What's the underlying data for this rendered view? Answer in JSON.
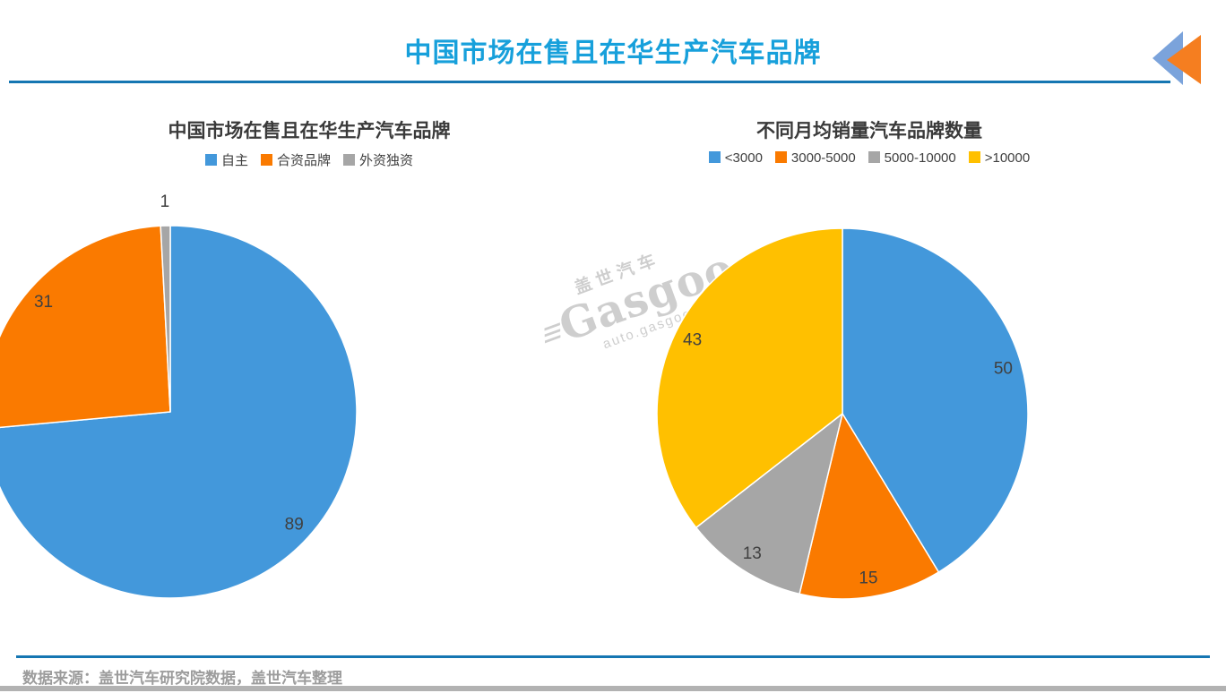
{
  "page": {
    "title": "中国市场在售且在华生产汽车品牌",
    "footer_source": "数据来源：盖世汽车研究院数据，盖世汽车整理",
    "watermark": {
      "cn": "盖世汽车",
      "bars": "≡",
      "brand": "Gasgoo",
      "url": "auto.gasgoo.com"
    },
    "colors": {
      "title": "#17A0DB",
      "rule": "#1576B2",
      "chart_title": "#3A3A3A",
      "data_label": "#404040",
      "footer_text": "#9C9C9C",
      "bottom_bar": "#B2B2B2",
      "logo_blue": "#7BA3DB",
      "logo_orange": "#F57E20"
    }
  },
  "chart_data": [
    {
      "type": "pie",
      "title": "中国市场在售且在华生产汽车品牌",
      "categories": [
        "自主",
        "合资品牌",
        "外资独资"
      ],
      "values": [
        89,
        31,
        1
      ],
      "colors": [
        "#4398DB",
        "#FA7A00",
        "#A6A6A6"
      ],
      "legend_position": "top",
      "start_angle_deg": 0,
      "direction": "clockwise",
      "data_labels": [
        "89",
        "31",
        "1"
      ]
    },
    {
      "type": "pie",
      "title": "不同月均销量汽车品牌数量",
      "categories": [
        "<3000",
        "3000-5000",
        "5000-10000",
        ">10000"
      ],
      "values": [
        50,
        15,
        13,
        43
      ],
      "colors": [
        "#4398DB",
        "#FA7A00",
        "#A6A6A6",
        "#FFC000"
      ],
      "legend_position": "top",
      "start_angle_deg": 0,
      "direction": "clockwise",
      "data_labels": [
        "50",
        "15",
        "13",
        "43"
      ]
    }
  ]
}
